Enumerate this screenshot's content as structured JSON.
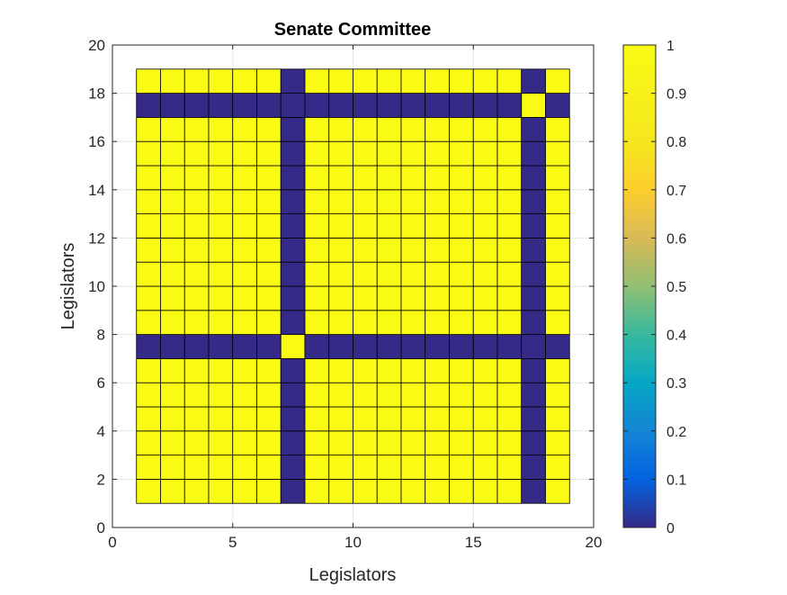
{
  "chart_data": {
    "type": "heatmap",
    "title": "Senate Committee",
    "xlabel": "Legislators",
    "ylabel": "Legislators",
    "xlim": [
      0,
      20
    ],
    "ylim": [
      0,
      20
    ],
    "x_ticks": [
      "0",
      "5",
      "10",
      "15",
      "20"
    ],
    "y_ticks": [
      "0",
      "2",
      "4",
      "6",
      "8",
      "10",
      "12",
      "14",
      "16",
      "18",
      "20"
    ],
    "grid": true,
    "n": 18,
    "cell_range": [
      1,
      19
    ],
    "zero_indices": [
      7,
      17
    ],
    "matrix_rule": "value is 1 when row equals column or neither index is 7 or 17; otherwise 0",
    "colorbar": {
      "min": 0,
      "max": 1,
      "ticks": [
        "0",
        "0.1",
        "0.2",
        "0.3",
        "0.4",
        "0.5",
        "0.6",
        "0.7",
        "0.8",
        "0.9",
        "1"
      ]
    },
    "colors": {
      "high": "#F9FB15",
      "low": "#352A87",
      "cell_edge": "#000000",
      "grid": "#E6E6E6",
      "axis": "#262626"
    }
  }
}
